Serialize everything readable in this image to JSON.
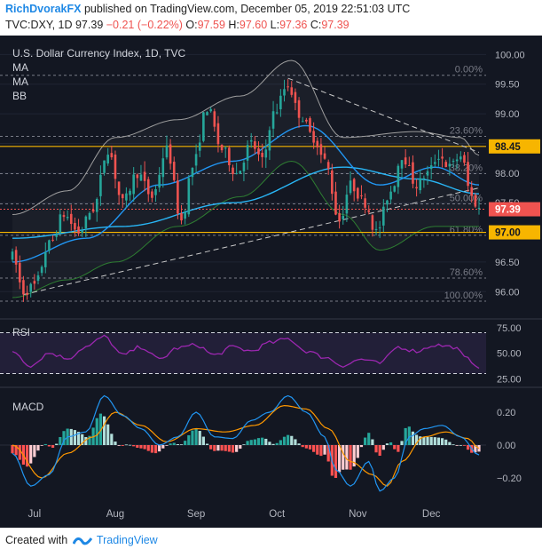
{
  "header": {
    "author": "RichDvorakFX",
    "published": "published on TradingView.com, December 05, 2019 22:51:03 UTC",
    "symbol": "TVC:DXY, 1D",
    "last": "97.39",
    "change": "−0.21 (−0.22%)",
    "o_label": "O:",
    "o_value": "97.59",
    "h_label": "H:",
    "h_value": "97.60",
    "l_label": "L:",
    "l_value": "97.36",
    "c_label": "C:",
    "c_value": "97.39"
  },
  "footer": {
    "created": "Created with",
    "brand": "TradingView"
  },
  "colors": {
    "background": "#131722",
    "up": "#26a69a",
    "down": "#ef5350",
    "rsi": "#9c27b0",
    "macd": "#2196f3",
    "signal": "#ff9800",
    "fib": "#787b86",
    "level_line": "#f7b500",
    "ma": "#2196f3",
    "bb": "#9e9e9e"
  },
  "chart_data": [
    {
      "type": "candlestick",
      "title": "U.S. Dollar Currency Index, 1D, TVC",
      "indicators": [
        "MA",
        "MA",
        "BB"
      ],
      "yticks": [
        "100.00",
        "99.50",
        "99.00",
        "98.50",
        "98.00",
        "97.50",
        "97.00",
        "96.50",
        "96.00"
      ],
      "ylim": [
        95.6,
        100.2
      ],
      "xticks": [
        "Jul",
        "Aug",
        "Sep",
        "Oct",
        "Nov",
        "Dec"
      ],
      "fib_levels": [
        {
          "label": "0.00%",
          "value": 99.65
        },
        {
          "label": "23.60%",
          "value": 98.62
        },
        {
          "label": "38.20%",
          "value": 97.99
        },
        {
          "label": "50.00%",
          "value": 97.48
        },
        {
          "label": "61.80%",
          "value": 96.95
        },
        {
          "label": "78.60%",
          "value": 96.23
        },
        {
          "label": "100.00%",
          "value": 95.84
        }
      ],
      "price_tags": [
        {
          "label": "98.45",
          "value": 98.45,
          "color": "#f7b500"
        },
        {
          "label": "97.39",
          "value": 97.39,
          "color": "#ef5350"
        },
        {
          "label": "97.00",
          "value": 97.0,
          "color": "#f7b500"
        }
      ],
      "anchors": [
        [
          0,
          96.6
        ],
        [
          3,
          96.0
        ],
        [
          6,
          96.1
        ],
        [
          10,
          96.8
        ],
        [
          14,
          97.3
        ],
        [
          18,
          97.0
        ],
        [
          22,
          97.4
        ],
        [
          26,
          98.4
        ],
        [
          30,
          97.5
        ],
        [
          34,
          98.0
        ],
        [
          38,
          97.6
        ],
        [
          42,
          98.4
        ],
        [
          46,
          97.2
        ],
        [
          49,
          98.1
        ],
        [
          53,
          99.1
        ],
        [
          57,
          98.4
        ],
        [
          61,
          98.0
        ],
        [
          65,
          98.5
        ],
        [
          68,
          98.2
        ],
        [
          71,
          99.0
        ],
        [
          75,
          99.5
        ],
        [
          78,
          99.0
        ],
        [
          82,
          98.6
        ],
        [
          85,
          98.2
        ],
        [
          89,
          97.2
        ],
        [
          92,
          97.8
        ],
        [
          96,
          97.5
        ],
        [
          99,
          97.0
        ],
        [
          103,
          97.7
        ],
        [
          106,
          98.3
        ],
        [
          110,
          97.8
        ],
        [
          113,
          98.0
        ],
        [
          116,
          98.3
        ],
        [
          119,
          98.1
        ],
        [
          122,
          98.3
        ],
        [
          125,
          97.6
        ],
        [
          127,
          97.39
        ]
      ],
      "ma_fast": [
        [
          0,
          96.5
        ],
        [
          20,
          96.9
        ],
        [
          40,
          97.8
        ],
        [
          60,
          98.2
        ],
        [
          80,
          98.8
        ],
        [
          100,
          97.8
        ],
        [
          115,
          98.1
        ],
        [
          127,
          97.8
        ]
      ],
      "ma_slow": [
        [
          0,
          96.9
        ],
        [
          30,
          97.1
        ],
        [
          60,
          97.5
        ],
        [
          90,
          98.1
        ],
        [
          110,
          97.9
        ],
        [
          127,
          97.65
        ]
      ],
      "bb_upper": [
        [
          0,
          97.3
        ],
        [
          15,
          97.7
        ],
        [
          28,
          98.6
        ],
        [
          45,
          98.9
        ],
        [
          62,
          99.3
        ],
        [
          76,
          99.9
        ],
        [
          90,
          98.6
        ],
        [
          110,
          98.7
        ],
        [
          122,
          98.6
        ],
        [
          127,
          98.3
        ]
      ],
      "bb_lower": [
        [
          0,
          95.9
        ],
        [
          15,
          96.2
        ],
        [
          28,
          96.5
        ],
        [
          45,
          97.1
        ],
        [
          62,
          97.6
        ],
        [
          76,
          98.2
        ],
        [
          90,
          97.3
        ],
        [
          100,
          96.7
        ],
        [
          115,
          97.1
        ],
        [
          127,
          97.1
        ]
      ]
    },
    {
      "type": "line",
      "title": "RSI",
      "yticks": [
        "75.00",
        "50.00",
        "25.00"
      ],
      "ylim": [
        20,
        80
      ],
      "bands": [
        70,
        30
      ],
      "values": [
        [
          0,
          52
        ],
        [
          5,
          38
        ],
        [
          10,
          50
        ],
        [
          15,
          45
        ],
        [
          20,
          56
        ],
        [
          25,
          66
        ],
        [
          30,
          48
        ],
        [
          35,
          56
        ],
        [
          40,
          44
        ],
        [
          45,
          55
        ],
        [
          50,
          58
        ],
        [
          55,
          48
        ],
        [
          60,
          56
        ],
        [
          65,
          52
        ],
        [
          70,
          60
        ],
        [
          75,
          64
        ],
        [
          80,
          52
        ],
        [
          85,
          46
        ],
        [
          90,
          38
        ],
        [
          95,
          44
        ],
        [
          100,
          40
        ],
        [
          105,
          56
        ],
        [
          110,
          52
        ],
        [
          115,
          58
        ],
        [
          120,
          56
        ],
        [
          124,
          44
        ],
        [
          127,
          37
        ]
      ]
    },
    {
      "type": "histogram+line",
      "title": "MACD",
      "yticks": [
        "0.20",
        "0.00",
        "−0.20"
      ],
      "ylim": [
        -0.33,
        0.33
      ],
      "macd": [
        [
          0,
          -0.05
        ],
        [
          5,
          -0.25
        ],
        [
          10,
          -0.18
        ],
        [
          15,
          0.05
        ],
        [
          20,
          0.08
        ],
        [
          25,
          0.3
        ],
        [
          30,
          0.18
        ],
        [
          35,
          0.1
        ],
        [
          40,
          0.0
        ],
        [
          45,
          0.05
        ],
        [
          50,
          0.2
        ],
        [
          55,
          0.05
        ],
        [
          60,
          0.04
        ],
        [
          65,
          0.15
        ],
        [
          70,
          0.2
        ],
        [
          75,
          0.3
        ],
        [
          80,
          0.2
        ],
        [
          85,
          0.05
        ],
        [
          88,
          -0.15
        ],
        [
          92,
          -0.25
        ],
        [
          97,
          -0.1
        ],
        [
          100,
          -0.28
        ],
        [
          104,
          -0.2
        ],
        [
          108,
          0.05
        ],
        [
          112,
          0.1
        ],
        [
          117,
          0.12
        ],
        [
          122,
          0.05
        ],
        [
          127,
          -0.06
        ]
      ],
      "signal": [
        [
          0,
          0.0
        ],
        [
          8,
          -0.2
        ],
        [
          15,
          -0.05
        ],
        [
          22,
          0.05
        ],
        [
          28,
          0.2
        ],
        [
          35,
          0.12
        ],
        [
          42,
          0.02
        ],
        [
          50,
          0.1
        ],
        [
          58,
          0.08
        ],
        [
          66,
          0.12
        ],
        [
          74,
          0.24
        ],
        [
          80,
          0.22
        ],
        [
          86,
          0.1
        ],
        [
          92,
          -0.1
        ],
        [
          98,
          -0.18
        ],
        [
          102,
          -0.25
        ],
        [
          106,
          -0.1
        ],
        [
          112,
          0.05
        ],
        [
          118,
          0.08
        ],
        [
          124,
          0.04
        ],
        [
          127,
          -0.02
        ]
      ]
    }
  ]
}
